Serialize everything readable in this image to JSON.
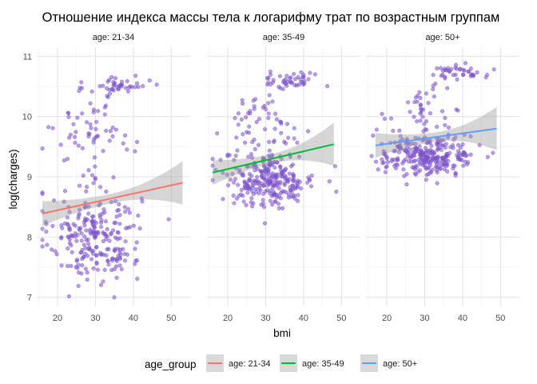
{
  "chart_data": {
    "type": "scatter",
    "title": "Отношение индекса массы тела к логарифму трат по возрастным группам",
    "xlabel": "bmi",
    "ylabel": "log(charges)",
    "xlim": [
      14.5,
      55
    ],
    "ylim": [
      6.85,
      11.15
    ],
    "x_ticks": [
      20,
      30,
      40,
      50
    ],
    "y_ticks": [
      7,
      8,
      9,
      10,
      11
    ],
    "grid": true,
    "legend_title": "age_group",
    "legend_position": "bottom",
    "point_color": "#7b52c9",
    "panels": [
      {
        "name": "age: 21-34",
        "color": "#f8766d",
        "trend": {
          "x": [
            16,
            53
          ],
          "y": [
            8.39,
            8.9
          ]
        },
        "clusters": [
          {
            "cx": 30,
            "cy": 8.0,
            "sx": 6,
            "sy": 0.38,
            "n": 230
          },
          {
            "cx": 30,
            "cy": 9.8,
            "sx": 5,
            "sy": 0.22,
            "n": 45
          },
          {
            "cx": 36,
            "cy": 10.5,
            "sx": 4,
            "sy": 0.09,
            "n": 45
          },
          {
            "cx": 26,
            "cy": 9.0,
            "sx": 7,
            "sy": 0.5,
            "n": 25
          }
        ]
      },
      {
        "name": "age: 35-49",
        "color": "#00ba38",
        "trend": {
          "x": [
            16,
            48
          ],
          "y": [
            9.07,
            9.54
          ]
        },
        "clusters": [
          {
            "cx": 31,
            "cy": 8.95,
            "sx": 6,
            "sy": 0.22,
            "n": 260
          },
          {
            "cx": 29,
            "cy": 9.95,
            "sx": 4,
            "sy": 0.2,
            "n": 40
          },
          {
            "cx": 37,
            "cy": 10.6,
            "sx": 4,
            "sy": 0.08,
            "n": 45
          },
          {
            "cx": 28,
            "cy": 9.5,
            "sx": 6,
            "sy": 0.35,
            "n": 20
          }
        ]
      },
      {
        "name": "age: 50+",
        "color": "#619cff",
        "trend": {
          "x": [
            17,
            49
          ],
          "y": [
            9.52,
            9.8
          ]
        },
        "clusters": [
          {
            "cx": 31,
            "cy": 9.35,
            "sx": 6,
            "sy": 0.17,
            "n": 270
          },
          {
            "cx": 30,
            "cy": 10.2,
            "sx": 3,
            "sy": 0.15,
            "n": 30
          },
          {
            "cx": 38,
            "cy": 10.72,
            "sx": 4,
            "sy": 0.07,
            "n": 40
          },
          {
            "cx": 28,
            "cy": 9.8,
            "sx": 6,
            "sy": 0.2,
            "n": 20
          }
        ]
      }
    ]
  }
}
